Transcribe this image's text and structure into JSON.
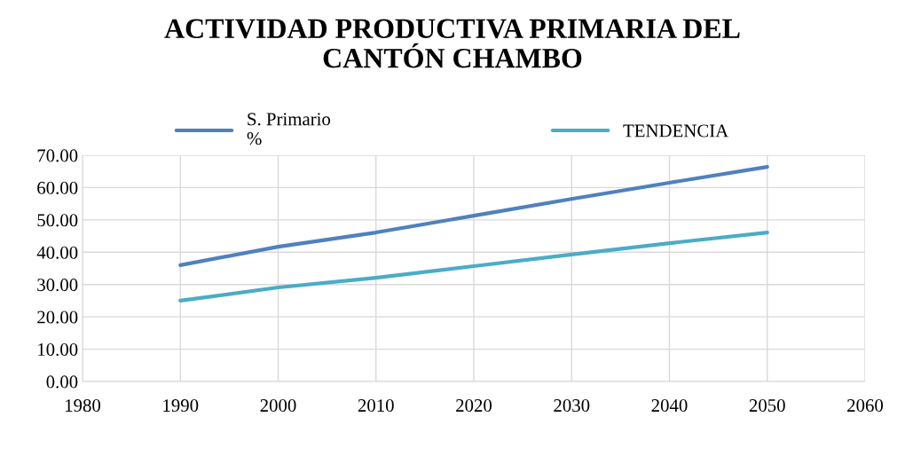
{
  "chart_data": {
    "type": "line",
    "title": "ACTIVIDAD PRODUCTIVA PRIMARIA DEL\nCANTÓN CHAMBO",
    "x": [
      1990,
      2000,
      2010,
      2020,
      2030,
      2040,
      2050
    ],
    "series": [
      {
        "name": "S. Primario\n%",
        "color": "#4f81bd",
        "values": [
          36.0,
          41.7,
          46.1,
          51.3,
          56.5,
          61.5,
          66.4
        ]
      },
      {
        "name": "TENDENCIA",
        "color": "#4bacc6",
        "values": [
          25.0,
          29.1,
          32.1,
          35.7,
          39.3,
          42.8,
          46.1
        ]
      }
    ],
    "xlim": [
      1980,
      2060
    ],
    "xticks": [
      1980,
      1990,
      2000,
      2010,
      2020,
      2030,
      2040,
      2050,
      2060
    ],
    "ylim": [
      0,
      70
    ],
    "yticks": [
      {
        "value": 0,
        "label": "0.00"
      },
      {
        "value": 10,
        "label": "10.00"
      },
      {
        "value": 20,
        "label": "20.00"
      },
      {
        "value": 30,
        "label": "30.00"
      },
      {
        "value": 40,
        "label": "40.00"
      },
      {
        "value": 50,
        "label": "50.00"
      },
      {
        "value": 60,
        "label": "60.00"
      },
      {
        "value": 70,
        "label": "70.00"
      }
    ],
    "grid": true,
    "legend": "top",
    "marker": "none",
    "line_style": "solid"
  }
}
